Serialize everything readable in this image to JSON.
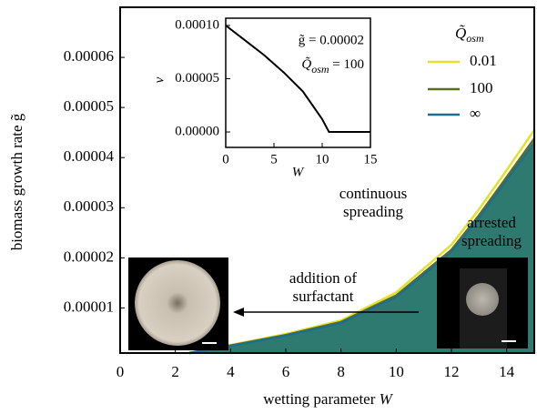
{
  "chart_data": [
    {
      "type": "line",
      "x_label": {
        "text": "wetting parameter ",
        "var": "W"
      },
      "y_label": "biomass growth rate g̃",
      "xlim": [
        0,
        15
      ],
      "xticks": [
        0,
        2,
        4,
        6,
        8,
        10,
        12,
        14
      ],
      "ylim": [
        1e-06,
        7e-05
      ],
      "yticks": [
        {
          "value": 1e-05,
          "label": "0.00001"
        },
        {
          "value": 2e-05,
          "label": "0.00002"
        },
        {
          "value": 3e-05,
          "label": "0.00003"
        },
        {
          "value": 4e-05,
          "label": "0.00004"
        },
        {
          "value": 5e-05,
          "label": "0.00005"
        },
        {
          "value": 6e-05,
          "label": "0.00006"
        }
      ],
      "legend_title": {
        "base": "Q̃",
        "sub": "osm"
      },
      "x": [
        2.5,
        4,
        6,
        8,
        10,
        12,
        13,
        14,
        15
      ],
      "series": [
        {
          "name": "0.01",
          "color": "#e3e12c",
          "values": [
            1.1e-06,
            2.6e-06,
            4.8e-06,
            7.5e-06,
            1.31e-05,
            2.26e-05,
            2.97e-05,
            3.75e-05,
            4.55e-05
          ]
        },
        {
          "name": "100",
          "color": "#5b6d1f",
          "values": [
            1e-06,
            2.5e-06,
            4.6e-06,
            7.2e-06,
            1.25e-05,
            2.16e-05,
            2.85e-05,
            3.61e-05,
            4.38e-05
          ]
        },
        {
          "name": "∞",
          "color": "#1f6e8c",
          "fill": "#2e7a70",
          "values": [
            1e-06,
            2.4e-06,
            4.5e-06,
            7e-06,
            1.22e-05,
            2.12e-05,
            2.8e-05,
            3.55e-05,
            4.3e-05
          ]
        }
      ],
      "annotations": [
        [
          "continuous",
          "spreading"
        ],
        [
          "arrested",
          "spreading"
        ],
        [
          "addition of",
          "surfactant"
        ]
      ]
    },
    {
      "type": "line",
      "x_label": "W",
      "y_label": "ν",
      "xlim": [
        0,
        15
      ],
      "xticks": [
        0,
        5,
        10,
        15
      ],
      "ylim": [
        -1.45e-05,
        0.0001068
      ],
      "yticks": [
        {
          "value": 0,
          "label": "0.00000"
        },
        {
          "value": 5e-05,
          "label": "0.00005"
        },
        {
          "value": 0.0001,
          "label": "0.00010"
        }
      ],
      "annotations": [
        "g̃ = 0.00002",
        {
          "base": "Q̃",
          "sub": "osm",
          "rest": " = 100"
        }
      ],
      "x": [
        0,
        1,
        2,
        4,
        6,
        8,
        10,
        10.7,
        15
      ],
      "series": [
        {
          "color": "#000000",
          "values": [
            0.0001,
            9.3e-05,
            8.6e-05,
            7.2e-05,
            5.6e-05,
            3.8e-05,
            1.2e-05,
            0,
            0
          ]
        }
      ]
    }
  ]
}
